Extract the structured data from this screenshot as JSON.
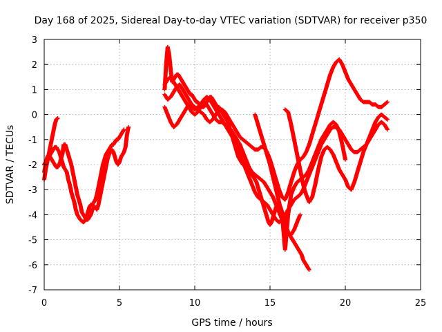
{
  "chart_data": {
    "type": "scatter",
    "title": "Day 168 of 2025, Sidereal Day-to-day VTEC variation (SDTVAR) for receiver p350",
    "xlabel": "GPS time / hours",
    "ylabel": "SDTVAR / TECUs",
    "xlim": [
      0,
      25
    ],
    "ylim": [
      -7,
      3
    ],
    "xticks": [
      0,
      5,
      10,
      15,
      20,
      25
    ],
    "yticks": [
      -7,
      -6,
      -5,
      -4,
      -3,
      -2,
      -1,
      0,
      1,
      2,
      3
    ],
    "grid": true,
    "marker": "+",
    "color": "#ff0000",
    "series": [
      {
        "x": [
          0.0,
          0.1,
          0.2,
          0.3,
          0.4,
          0.5,
          0.6,
          0.7,
          0.8,
          0.9
        ],
        "y": [
          -2.6,
          -2.2,
          -1.9,
          -1.6,
          -1.3,
          -1.0,
          -0.7,
          -0.4,
          -0.2,
          -0.15
        ]
      },
      {
        "x": [
          0.0,
          0.1,
          0.2,
          0.3,
          0.4,
          0.5,
          0.6,
          0.7,
          0.8,
          0.9,
          1.0,
          1.1,
          1.2,
          1.3,
          1.4,
          1.5,
          1.6,
          1.7,
          1.8,
          1.9,
          2.0,
          2.1,
          2.2,
          2.3,
          2.4,
          2.5,
          2.6,
          2.7,
          2.8,
          2.9,
          3.0,
          3.1,
          3.2,
          3.3,
          3.4,
          3.5,
          3.6,
          3.7,
          3.8,
          3.9,
          4.0,
          4.1,
          4.2,
          4.3,
          4.4,
          4.5,
          4.6,
          4.7,
          4.8,
          4.9,
          5.0,
          5.1,
          5.2,
          5.3
        ],
        "y": [
          -2.0,
          -1.9,
          -1.8,
          -1.7,
          -1.6,
          -1.5,
          -1.4,
          -1.3,
          -1.3,
          -1.4,
          -1.5,
          -1.7,
          -1.9,
          -2.1,
          -2.2,
          -2.3,
          -2.6,
          -2.8,
          -3.1,
          -3.3,
          -3.5,
          -3.8,
          -4.0,
          -4.1,
          -4.2,
          -4.25,
          -4.3,
          -4.25,
          -4.1,
          -3.9,
          -3.7,
          -3.6,
          -3.6,
          -3.5,
          -3.4,
          -3.2,
          -2.9,
          -2.6,
          -2.3,
          -2.0,
          -1.8,
          -1.6,
          -1.5,
          -1.4,
          -1.3,
          -1.2,
          -1.2,
          -1.1,
          -1.0,
          -1.0,
          -0.9,
          -0.8,
          -0.7,
          -0.6
        ]
      },
      {
        "x": [
          0.0,
          0.1,
          0.2,
          0.3,
          0.4,
          0.5,
          0.6,
          0.7,
          0.8,
          0.9,
          1.0,
          1.1,
          1.2,
          1.3,
          1.4,
          1.5,
          1.6,
          1.7,
          1.8,
          1.9,
          2.0,
          2.1,
          2.2,
          2.3,
          2.4,
          2.5,
          2.6,
          2.7,
          2.8,
          2.9,
          3.0,
          3.1,
          3.2,
          3.3,
          3.4,
          3.5,
          3.6,
          3.7,
          3.8,
          3.9,
          4.0,
          4.1,
          4.2,
          4.3,
          4.4,
          4.5,
          4.6,
          4.7,
          4.8,
          4.9,
          5.0,
          5.1,
          5.2,
          5.3,
          5.4,
          5.5,
          5.6
        ],
        "y": [
          -2.3,
          -2.0,
          -1.7,
          -1.6,
          -1.7,
          -1.8,
          -1.9,
          -2.0,
          -2.1,
          -2.1,
          -2.0,
          -1.8,
          -1.6,
          -1.2,
          -1.2,
          -1.4,
          -1.6,
          -1.8,
          -2.0,
          -2.3,
          -2.6,
          -2.9,
          -3.2,
          -3.4,
          -3.6,
          -3.9,
          -4.0,
          -4.1,
          -4.2,
          -4.2,
          -4.1,
          -4.0,
          -3.8,
          -3.7,
          -3.7,
          -3.8,
          -3.6,
          -3.3,
          -3.0,
          -2.7,
          -2.4,
          -2.1,
          -1.8,
          -1.6,
          -1.5,
          -1.4,
          -1.5,
          -1.7,
          -1.9,
          -2.0,
          -1.9,
          -1.7,
          -1.6,
          -1.5,
          -1.3,
          -0.8,
          -0.5
        ]
      },
      {
        "x": [
          8.0,
          8.1,
          8.2,
          8.3,
          8.4,
          8.5,
          8.6,
          8.7,
          8.8,
          8.9,
          9.0,
          9.1,
          9.2,
          9.3,
          9.4,
          9.5,
          9.6,
          9.7,
          9.8,
          9.9,
          10.0,
          10.1,
          10.2,
          10.3,
          10.4,
          10.5,
          10.6,
          10.7,
          10.8,
          10.9,
          11.0,
          11.1,
          11.2,
          11.3,
          11.4,
          11.5,
          11.6,
          11.7,
          11.8,
          11.9,
          12.0,
          12.1,
          12.2,
          12.3,
          12.4,
          12.5,
          12.6,
          12.7,
          12.8,
          12.9,
          13.0,
          13.1,
          13.2,
          13.3,
          13.4,
          13.5,
          13.6,
          13.7,
          13.8,
          13.9,
          14.0,
          14.1,
          14.2,
          14.3,
          14.4,
          14.5,
          14.6,
          14.7,
          14.8,
          14.9,
          15.0,
          15.1,
          15.2,
          15.3,
          15.4,
          15.5,
          15.6,
          15.7,
          15.8,
          15.9,
          16.0,
          16.1,
          16.2,
          16.3,
          16.4,
          16.5,
          16.6,
          16.7,
          16.8,
          16.9,
          17.0,
          17.1,
          17.2,
          17.3,
          17.4,
          17.5,
          17.6
        ],
        "y": [
          1.0,
          2.0,
          2.7,
          2.4,
          1.8,
          1.3,
          1.4,
          1.5,
          1.6,
          1.6,
          1.5,
          1.4,
          1.3,
          1.2,
          1.1,
          1.0,
          0.9,
          0.8,
          0.8,
          0.7,
          0.6,
          0.5,
          0.5,
          0.4,
          0.4,
          0.3,
          0.3,
          0.4,
          0.5,
          0.6,
          0.7,
          0.7,
          0.6,
          0.5,
          0.4,
          0.3,
          0.3,
          0.2,
          0.1,
          0.0,
          -0.1,
          -0.2,
          -0.3,
          -0.5,
          -0.7,
          -0.9,
          -1.1,
          -1.3,
          -1.5,
          -1.7,
          -1.8,
          -1.9,
          -2.0,
          -2.0,
          -2.1,
          -2.2,
          -2.3,
          -2.3,
          -2.4,
          -2.5,
          -2.6,
          -2.7,
          -2.9,
          -3.1,
          -3.3,
          -3.5,
          -3.7,
          -3.9,
          -4.1,
          -4.3,
          -4.4,
          -4.3,
          -4.1,
          -3.9,
          -3.7,
          -3.6,
          -3.6,
          -3.7,
          -3.9,
          -4.1,
          -4.3,
          -4.5,
          -4.7,
          -4.8,
          -4.9,
          -5.0,
          -5.1,
          -5.2,
          -5.3,
          -5.4,
          -5.5,
          -5.6,
          -5.8,
          -5.9,
          -6.0,
          -6.1,
          -6.2
        ]
      },
      {
        "x": [
          8.0,
          8.2,
          8.4,
          8.6,
          8.8,
          9.0,
          9.2,
          9.4,
          9.6,
          9.8,
          10.0,
          10.2,
          10.4,
          10.6,
          10.8,
          11.0,
          11.2,
          11.4,
          11.6,
          11.8,
          12.0,
          12.2,
          12.4,
          12.6,
          12.8,
          13.0,
          13.2,
          13.4,
          13.6,
          13.8,
          14.0,
          14.2,
          14.4,
          14.6,
          14.8,
          15.0,
          15.2,
          15.4,
          15.6,
          15.8,
          16.0,
          16.2,
          16.4,
          16.6,
          16.8,
          17.0,
          17.2,
          17.4,
          17.6,
          17.8,
          18.0,
          18.2,
          18.4,
          18.6,
          18.8,
          19.0,
          19.2,
          19.4,
          19.6,
          19.8,
          20.0,
          20.2,
          20.4,
          20.6,
          20.8,
          21.0,
          21.2,
          21.4,
          21.6,
          21.8,
          22.0,
          22.2,
          22.4,
          22.6,
          22.8
        ],
        "y": [
          0.3,
          0.0,
          -0.3,
          -0.5,
          -0.4,
          -0.2,
          0.0,
          0.2,
          0.4,
          0.3,
          0.2,
          0.3,
          0.4,
          0.6,
          0.7,
          0.6,
          0.4,
          0.2,
          0.0,
          -0.2,
          -0.4,
          -0.6,
          -0.8,
          -1.0,
          -1.3,
          -1.6,
          -1.9,
          -2.2,
          -2.5,
          -2.8,
          -3.1,
          -3.3,
          -3.4,
          -3.5,
          -3.6,
          -3.8,
          -4.0,
          -4.2,
          -4.3,
          -4.2,
          -4.0,
          -3.8,
          -3.6,
          -3.4,
          -3.3,
          -3.2,
          -3.0,
          -2.7,
          -2.4,
          -2.1,
          -1.8,
          -1.5,
          -1.2,
          -1.0,
          -0.8,
          -0.6,
          -0.5,
          -0.5,
          -0.6,
          -0.8,
          -1.0,
          -1.2,
          -1.4,
          -1.5,
          -1.5,
          -1.4,
          -1.3,
          -1.2,
          -1.0,
          -0.8,
          -0.6,
          -0.4,
          -0.3,
          -0.4,
          -0.6
        ]
      },
      {
        "x": [
          8.0,
          8.2,
          8.4,
          8.6,
          8.8,
          9.0,
          9.2,
          9.4,
          9.6,
          9.8,
          10.0,
          10.2,
          10.4,
          10.6,
          10.8,
          11.0,
          11.2,
          11.4,
          11.6,
          11.8,
          12.0,
          12.2,
          12.4,
          12.6,
          12.8,
          13.0,
          13.2,
          13.4,
          13.6,
          13.8,
          14.0,
          14.2,
          14.4,
          14.6,
          14.8,
          15.0,
          15.2,
          15.4,
          15.6,
          15.8,
          16.0,
          16.2,
          16.4,
          16.6,
          16.8,
          17.0,
          17.2,
          17.4,
          17.6,
          17.8,
          18.0,
          18.2,
          18.4,
          18.6,
          18.8,
          19.0,
          19.2,
          19.4,
          19.6,
          19.8,
          20.0,
          20.2,
          20.4,
          20.6,
          20.8,
          21.0,
          21.2,
          21.4,
          21.6,
          21.8,
          22.0,
          22.2,
          22.4,
          22.6,
          22.8
        ],
        "y": [
          0.8,
          0.6,
          0.7,
          0.9,
          1.1,
          1.2,
          1.0,
          0.8,
          0.6,
          0.4,
          0.3,
          0.2,
          0.1,
          0.0,
          -0.2,
          -0.3,
          -0.2,
          0.0,
          0.2,
          0.2,
          0.1,
          -0.1,
          -0.3,
          -0.5,
          -0.7,
          -0.9,
          -1.0,
          -1.1,
          -1.2,
          -1.3,
          -1.4,
          -1.4,
          -1.3,
          -1.3,
          -1.5,
          -1.8,
          -2.2,
          -2.6,
          -3.0,
          -3.3,
          -3.4,
          -3.1,
          -2.7,
          -2.3,
          -2.0,
          -1.8,
          -1.7,
          -1.5,
          -1.2,
          -0.8,
          -0.4,
          0.0,
          0.4,
          0.8,
          1.2,
          1.6,
          1.9,
          2.1,
          2.2,
          2.0,
          1.7,
          1.4,
          1.2,
          1.0,
          0.8,
          0.6,
          0.5,
          0.5,
          0.5,
          0.4,
          0.4,
          0.3,
          0.3,
          0.4,
          0.5
        ]
      },
      {
        "x": [
          8.0,
          8.2,
          8.4,
          8.6,
          8.8,
          9.0,
          9.2,
          9.4,
          9.6,
          9.8,
          10.0,
          10.2,
          10.4,
          10.6,
          10.8,
          11.0,
          11.2,
          11.4,
          11.6,
          11.8,
          12.0,
          12.2,
          12.4,
          12.6,
          12.8,
          13.0,
          13.2,
          13.4,
          13.6,
          13.8,
          14.0,
          14.2,
          14.4,
          14.6,
          14.8,
          15.0,
          15.2,
          15.4,
          15.6,
          15.8,
          16.0,
          16.2,
          16.4,
          16.6,
          16.8,
          17.0
        ],
        "y": [
          1.2,
          1.4,
          1.5,
          1.3,
          1.1,
          0.9,
          0.7,
          0.5,
          0.3,
          0.1,
          0.0,
          0.1,
          0.3,
          0.5,
          0.4,
          0.2,
          0.0,
          -0.2,
          -0.3,
          -0.3,
          -0.4,
          -0.5,
          -0.6,
          -0.8,
          -1.0,
          -1.2,
          -1.5,
          -1.8,
          -2.1,
          -2.3,
          -2.4,
          -2.5,
          -2.6,
          -2.7,
          -2.9,
          -3.1,
          -3.3,
          -3.6,
          -3.9,
          -4.2,
          -4.5,
          -4.7,
          -4.8,
          -4.6,
          -4.3,
          -4.0
        ]
      },
      {
        "x": [
          14.0,
          14.2,
          14.4,
          14.6,
          14.8,
          15.0,
          15.2,
          15.4,
          15.6,
          15.8,
          16.0,
          16.2,
          16.4,
          16.6,
          16.8,
          17.0,
          17.2,
          17.4,
          17.6,
          17.8,
          18.0,
          18.2,
          18.4,
          18.6,
          18.8,
          19.0,
          19.2,
          19.4,
          19.6,
          19.8,
          20.0
        ],
        "y": [
          0.0,
          -0.4,
          -0.8,
          -1.2,
          -1.6,
          -2.0,
          -2.5,
          -3.0,
          -3.5,
          -4.0,
          -5.4,
          -4.0,
          -3.2,
          -2.9,
          -2.7,
          -2.6,
          -2.5,
          -2.4,
          -2.2,
          -1.9,
          -1.6,
          -1.3,
          -1.0,
          -0.8,
          -0.6,
          -0.4,
          -0.3,
          -0.4,
          -0.7,
          -1.2,
          -1.8
        ]
      },
      {
        "x": [
          16.0,
          16.2,
          16.4,
          16.6,
          16.8,
          17.0,
          17.2,
          17.4,
          17.6,
          17.8,
          18.0,
          18.2,
          18.4,
          18.6,
          18.8,
          19.0,
          19.2,
          19.4,
          19.6,
          19.8,
          20.0,
          20.2,
          20.4,
          20.6,
          20.8,
          21.0,
          21.2,
          21.4,
          21.6,
          21.8,
          22.0,
          22.2,
          22.4,
          22.6,
          22.8
        ],
        "y": [
          0.2,
          0.1,
          -0.4,
          -1.0,
          -1.6,
          -2.2,
          -2.8,
          -3.2,
          -3.5,
          -3.3,
          -2.8,
          -2.2,
          -1.7,
          -1.4,
          -1.3,
          -1.4,
          -1.6,
          -1.9,
          -2.2,
          -2.4,
          -2.6,
          -2.9,
          -3.0,
          -2.7,
          -2.3,
          -1.9,
          -1.5,
          -1.2,
          -0.9,
          -0.6,
          -0.3,
          -0.1,
          0.0,
          -0.1,
          -0.2
        ]
      }
    ]
  }
}
